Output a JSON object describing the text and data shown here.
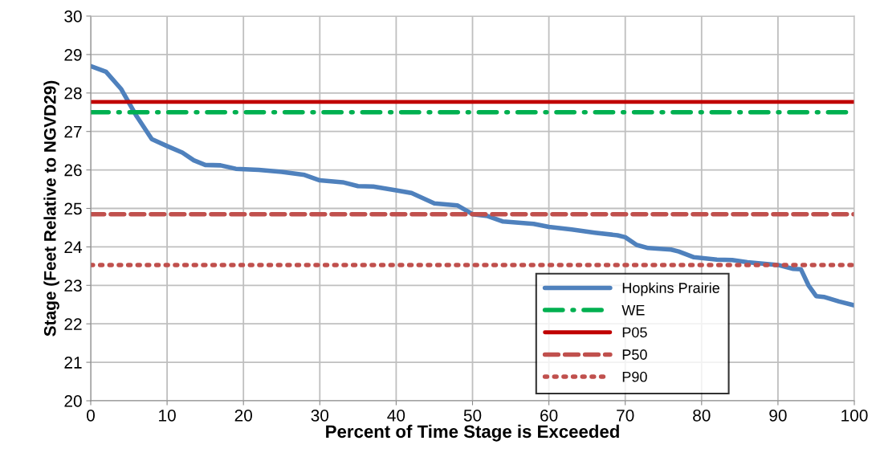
{
  "chart_data": {
    "type": "line",
    "xlabel": "Percent of Time Stage is Exceeded",
    "ylabel": "Stage (Feet Relative to NGVD29)",
    "xlim": [
      0,
      100
    ],
    "xticks": [
      0,
      10,
      20,
      30,
      40,
      50,
      60,
      70,
      80,
      90,
      100
    ],
    "ylim": [
      20,
      30
    ],
    "yticks": [
      20,
      21,
      22,
      23,
      24,
      25,
      26,
      27,
      28,
      29,
      30
    ],
    "grid": true,
    "legend": "bottom right",
    "marker": "none",
    "series": [
      {
        "name": "Hopkins Prairie",
        "color": "#4f81bd",
        "line_style": "solid",
        "x": [
          0,
          2,
          4,
          6,
          8,
          10,
          12,
          13.5,
          15,
          17,
          19,
          22,
          25,
          28,
          30,
          33,
          35,
          37,
          40,
          42,
          45,
          48,
          50,
          52,
          54,
          58,
          60,
          63,
          66,
          69,
          70,
          71.5,
          73,
          76,
          77,
          79,
          82,
          84,
          86,
          90,
          92,
          93,
          94,
          95,
          96,
          98,
          100
        ],
        "values": [
          28.7,
          28.55,
          28.1,
          27.4,
          26.8,
          26.62,
          26.45,
          26.25,
          26.13,
          26.12,
          26.03,
          26.0,
          25.95,
          25.87,
          25.73,
          25.68,
          25.58,
          25.57,
          25.47,
          25.4,
          25.13,
          25.08,
          24.85,
          24.8,
          24.66,
          24.6,
          24.52,
          24.45,
          24.37,
          24.3,
          24.25,
          24.05,
          23.97,
          23.93,
          23.88,
          23.73,
          23.67,
          23.66,
          23.6,
          23.53,
          23.43,
          23.42,
          23.0,
          22.72,
          22.7,
          22.58,
          22.48
        ]
      },
      {
        "name": "WE",
        "color": "#00b050",
        "line_style": "dashdot",
        "x": [
          0,
          100
        ],
        "values": [
          27.5,
          27.5
        ]
      },
      {
        "name": "P05",
        "color": "#c00000",
        "line_style": "solid",
        "x": [
          0,
          100
        ],
        "values": [
          27.77,
          27.77
        ]
      },
      {
        "name": "P50",
        "color": "#c0504d",
        "line_style": "dashed",
        "x": [
          0,
          100
        ],
        "values": [
          24.85,
          24.85
        ]
      },
      {
        "name": "P90",
        "color": "#c0504d",
        "line_style": "dotted",
        "x": [
          0,
          100
        ],
        "values": [
          23.53,
          23.53
        ]
      }
    ]
  }
}
